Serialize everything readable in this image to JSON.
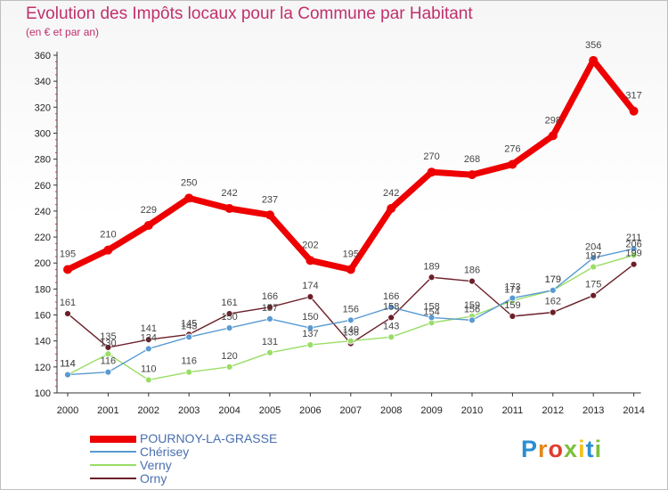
{
  "header": {
    "title": "Evolution des Impôts locaux pour la Commune par Habitant",
    "subtitle": "(en € et par an)"
  },
  "logo": {
    "text": "Proxiti",
    "colors": [
      "#2a8fd1",
      "#e28a1a",
      "#e23a2e",
      "#7cbf3a",
      "#f4c21c",
      "#2a8fd1",
      "#7cbf3a"
    ]
  },
  "chart_data": {
    "type": "line",
    "title": "Evolution des Impôts locaux pour la Commune par Habitant",
    "subtitle": "(en € et par an)",
    "xlabel": "",
    "ylabel": "",
    "x": [
      "2000",
      "2001",
      "2002",
      "2003",
      "2004",
      "2005",
      "2006",
      "2007",
      "2008",
      "2009",
      "2010",
      "2011",
      "2012",
      "2013",
      "2014"
    ],
    "ylim": [
      100,
      360
    ],
    "yticks": [
      100,
      120,
      140,
      160,
      180,
      200,
      220,
      240,
      260,
      280,
      300,
      320,
      340,
      360
    ],
    "grid": false,
    "legend": "bottom-left",
    "series": [
      {
        "name": "POURNOY-LA-GRASSE",
        "color": "#ee0000",
        "values": [
          195,
          210,
          229,
          250,
          242,
          237,
          202,
          195,
          242,
          270,
          268,
          276,
          298,
          356,
          317
        ]
      },
      {
        "name": "Chérisey",
        "color": "#5a9ad2",
        "values": [
          114,
          116,
          134,
          143,
          150,
          157,
          150,
          156,
          166,
          158,
          156,
          173,
          179,
          204,
          211
        ]
      },
      {
        "name": "Verny",
        "color": "#99dd66",
        "values": [
          114,
          130,
          110,
          116,
          120,
          131,
          137,
          140,
          143,
          154,
          159,
          171,
          179,
          197,
          206
        ]
      },
      {
        "name": "Orny",
        "color": "#6b1f28",
        "values": [
          161,
          135,
          141,
          145,
          161,
          166,
          174,
          138,
          158,
          189,
          186,
          159,
          162,
          175,
          199
        ]
      }
    ],
    "data_labels": {
      "POURNOY-LA-GRASSE": [
        "195",
        "210",
        "229",
        "250",
        "242",
        "237",
        "202",
        "195",
        "242",
        "270",
        "268",
        "276",
        "298",
        "356",
        "317"
      ],
      "Chérisey": [
        "114",
        "116",
        "134",
        "143",
        "150",
        "157",
        "150",
        "156",
        "166",
        "158",
        "156",
        "173",
        "179",
        "204",
        "211"
      ],
      "Verny": [
        "114",
        "130",
        "110",
        "116",
        "120",
        "131",
        "137",
        "140",
        "143",
        "154",
        "159",
        "171",
        "179",
        "197",
        "206"
      ],
      "Orny": [
        "161",
        "135",
        "141",
        "145",
        "161",
        "166",
        "174",
        "138",
        "158",
        "189",
        "186",
        "159",
        "162",
        "175",
        "199"
      ]
    }
  }
}
